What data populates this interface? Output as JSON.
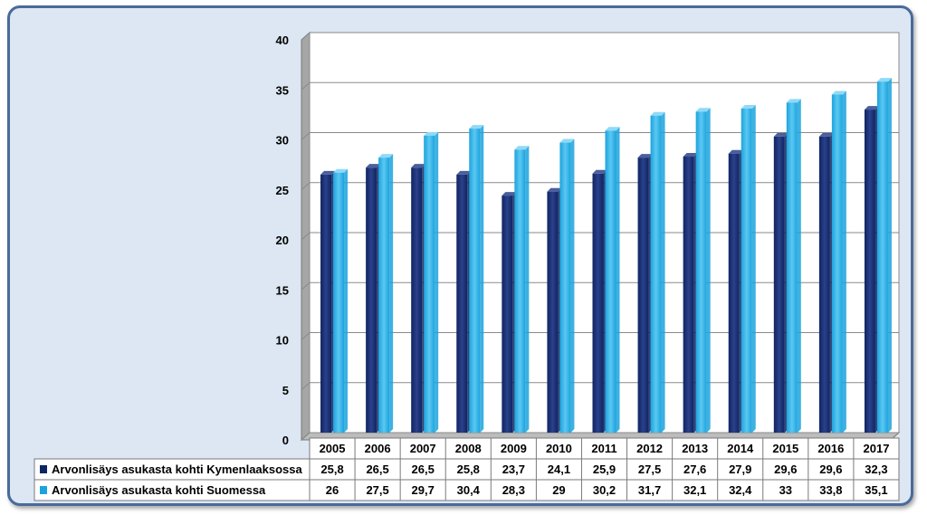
{
  "chart_data": {
    "type": "bar",
    "title": "",
    "xlabel": "",
    "ylabel": "",
    "ylim": [
      0,
      40
    ],
    "yticks": [
      0,
      5,
      10,
      15,
      20,
      25,
      30,
      35,
      40
    ],
    "grid": true,
    "legend": "data-table-bottom",
    "categories": [
      "2005",
      "2006",
      "2007",
      "2008",
      "2009",
      "2010",
      "2011",
      "2012",
      "2013",
      "2014",
      "2015",
      "2016",
      "2017"
    ],
    "series": [
      {
        "name": "Arvonlisäys asukasta kohti Kymenlaaksossa",
        "color": "#0f2462",
        "values": [
          25.8,
          26.5,
          26.5,
          25.8,
          23.7,
          24.1,
          25.9,
          27.5,
          27.6,
          27.9,
          29.6,
          29.6,
          32.3
        ],
        "labels": [
          "25,8",
          "26,5",
          "26,5",
          "25,8",
          "23,7",
          "24,1",
          "25,9",
          "27,5",
          "27,6",
          "27,9",
          "29,6",
          "29,6",
          "32,3"
        ]
      },
      {
        "name": "Arvonlisäys asukasta kohti Suomessa",
        "color": "#1ba3dd",
        "values": [
          26,
          27.5,
          29.7,
          30.4,
          28.3,
          29,
          30.2,
          31.7,
          32.1,
          32.4,
          33,
          33.8,
          35.1
        ],
        "labels": [
          "26",
          "27,5",
          "29,7",
          "30,4",
          "28,3",
          "29",
          "30,2",
          "31,7",
          "32,1",
          "32,4",
          "33",
          "33,8",
          "35,1"
        ]
      }
    ]
  }
}
